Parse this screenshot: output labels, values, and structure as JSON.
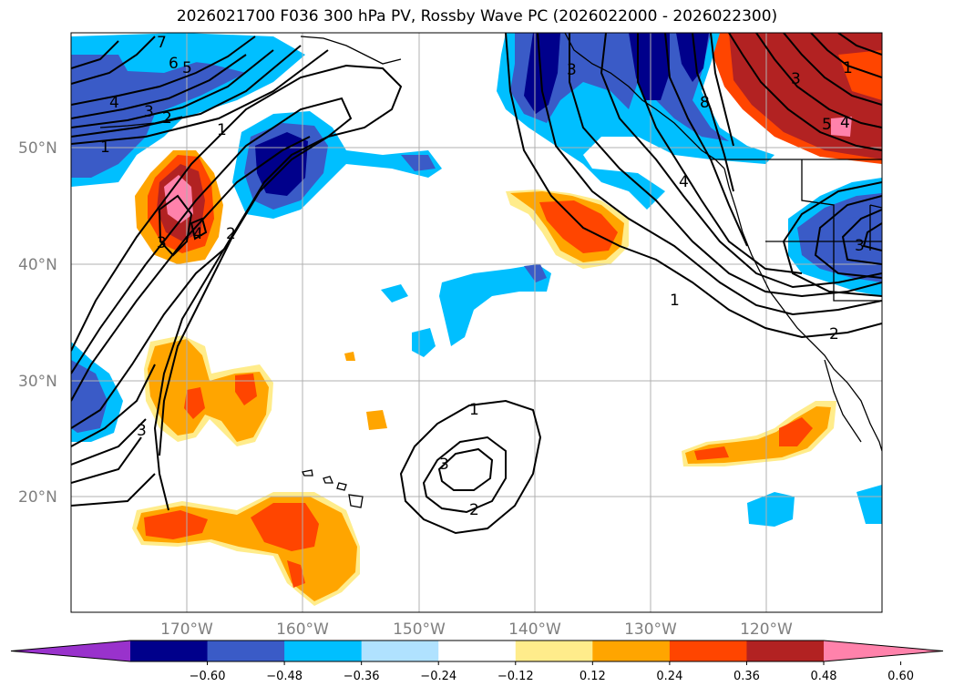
{
  "title": "2026021700 F036 300 hPa PV, Rossby Wave PC (2026022000 - 2026022300)",
  "lat_labels": [
    "50°N",
    "40°N",
    "30°N",
    "20°N"
  ],
  "lon_labels": [
    "170°W",
    "160°W",
    "150°W",
    "140°W",
    "130°W",
    "120°W"
  ],
  "colorbar": {
    "ticks": [
      "−0.60",
      "−0.48",
      "−0.36",
      "−0.24",
      "−0.12",
      "0.12",
      "0.24",
      "0.36",
      "0.48",
      "0.60"
    ],
    "colors": [
      "#9932cc",
      "#00008b",
      "#3a5bc7",
      "#00bfff",
      "#b0e2ff",
      "#ffffff",
      "#ffec8b",
      "#ffa500",
      "#ff4500",
      "#b22222",
      "#ff82ab"
    ]
  },
  "contour_labels": [
    "1",
    "2",
    "3",
    "4",
    "5",
    "6",
    "7",
    "8"
  ]
}
